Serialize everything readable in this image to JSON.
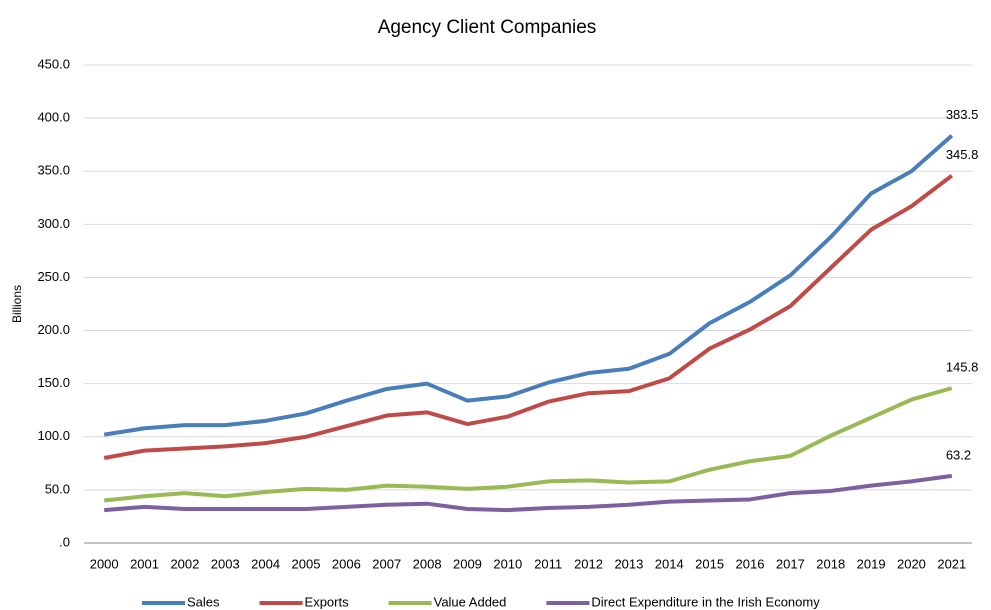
{
  "chart_data": {
    "type": "line",
    "title": "Agency Client Companies",
    "y_label": "Billions",
    "categories": [
      "2000",
      "2001",
      "2002",
      "2003",
      "2004",
      "2005",
      "2006",
      "2007",
      "2008",
      "2009",
      "2010",
      "2011",
      "2012",
      "2013",
      "2014",
      "2015",
      "2016",
      "2017",
      "2018",
      "2019",
      "2020",
      "2021"
    ],
    "series": [
      {
        "name": "Sales",
        "color": "#4a7ebb",
        "values": [
          102,
          108,
          111,
          111,
          115,
          122,
          134,
          145,
          150,
          134,
          138,
          151,
          160,
          164,
          178,
          207,
          227,
          252,
          288,
          329,
          350,
          383.5
        ]
      },
      {
        "name": "Exports",
        "color": "#be4b48",
        "values": [
          80,
          87,
          89,
          91,
          94,
          100,
          110,
          120,
          123,
          112,
          119,
          133,
          141,
          143,
          155,
          183,
          201,
          223,
          259,
          295,
          317,
          345.8
        ]
      },
      {
        "name": "Value Added",
        "color": "#98b954",
        "values": [
          40,
          44,
          47,
          44,
          48,
          51,
          50,
          54,
          53,
          51,
          53,
          58,
          59,
          57,
          58,
          69,
          77,
          82,
          101,
          118,
          135,
          145.8
        ]
      },
      {
        "name": "Direct Expenditure in the Irish Economy",
        "color": "#7d60a0",
        "values": [
          31,
          34,
          32,
          32,
          32,
          32,
          34,
          36,
          37,
          32,
          31,
          33,
          34,
          36,
          39,
          40,
          41,
          47,
          49,
          54,
          58,
          63.2
        ]
      }
    ],
    "ylim": [
      0,
      450
    ],
    "yticks": [
      {
        "value": 0,
        "label": ".0"
      },
      {
        "value": 50,
        "label": "50.0"
      },
      {
        "value": 100,
        "label": "100.0"
      },
      {
        "value": 150,
        "label": "150.0"
      },
      {
        "value": 200,
        "label": "200.0"
      },
      {
        "value": 250,
        "label": "250.0"
      },
      {
        "value": 300,
        "label": "300.0"
      },
      {
        "value": 350,
        "label": "350.0"
      },
      {
        "value": 400,
        "label": "400.0"
      },
      {
        "value": 450,
        "label": "450.0"
      }
    ],
    "grid": true,
    "label_last": true,
    "legend": "bottom"
  }
}
